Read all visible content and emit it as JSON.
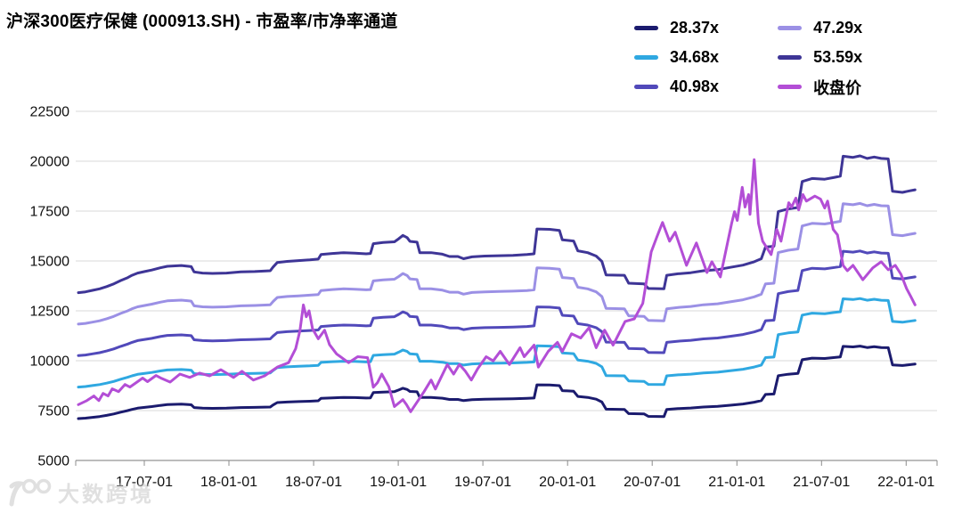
{
  "title": "沪深300医疗保健 (000913.SH) - 市盈率/市净率通道",
  "watermark": "大数跨境",
  "watermark_logo": "100-badge",
  "colors": {
    "background": "#ffffff",
    "grid": "#d9d9d9",
    "axis": "#a6a6a6",
    "tick": "#8c8c8c",
    "text": "#000000"
  },
  "legend": {
    "columns": [
      [
        "28.37x",
        "34.68x",
        "40.98x"
      ],
      [
        "47.29x",
        "53.59x",
        "收盘价"
      ]
    ]
  },
  "chart_data": {
    "type": "line",
    "title": "沪深300医疗保健 (000913.SH) - 市盈率/市净率通道",
    "xlabel": "",
    "ylabel": "",
    "grid": "horizontal",
    "legend_position": "top-right",
    "ylim": [
      5000,
      22500
    ],
    "y_ticks": [
      5000,
      7500,
      10000,
      12500,
      15000,
      17500,
      20000,
      22500
    ],
    "x_ticks": {
      "labels": [
        "17-07-01",
        "18-01-01",
        "18-07-01",
        "19-01-01",
        "19-07-01",
        "20-01-01",
        "20-07-01",
        "21-01-01",
        "21-07-01",
        "22-01-01"
      ],
      "t": [
        4.67,
        10.67,
        16.67,
        22.67,
        28.67,
        34.67,
        40.67,
        46.67,
        52.67,
        58.67
      ]
    },
    "time_axis_note": "t is months elapsed since series start (early 2017-02); ticks every 6 months",
    "base_multiple": 28.37,
    "series": [
      {
        "name": "28.37x",
        "multiple": 28.37,
        "color": "#1b1b6e",
        "source": "base"
      },
      {
        "name": "34.68x",
        "multiple": 34.68,
        "color": "#2fa8e1",
        "source": "base"
      },
      {
        "name": "40.98x",
        "multiple": 40.98,
        "color": "#5149ba",
        "source": "base"
      },
      {
        "name": "47.29x",
        "multiple": 47.29,
        "color": "#9b90e5",
        "source": "base"
      },
      {
        "name": "53.59x",
        "multiple": 53.59,
        "color": "#3e3596",
        "source": "base"
      },
      {
        "name": "收盘价",
        "color": "#b34ed6",
        "source": "close"
      }
    ],
    "base_points": [
      [
        0,
        7100
      ],
      [
        0.5,
        7120
      ],
      [
        1,
        7160
      ],
      [
        1.5,
        7200
      ],
      [
        2,
        7260
      ],
      [
        2.5,
        7330
      ],
      [
        3,
        7420
      ],
      [
        3.5,
        7500
      ],
      [
        3.8,
        7560
      ],
      [
        4.2,
        7620
      ],
      [
        4.7,
        7660
      ],
      [
        5.2,
        7700
      ],
      [
        5.8,
        7760
      ],
      [
        6.3,
        7800
      ],
      [
        7.3,
        7820
      ],
      [
        7.8,
        7800
      ],
      [
        8.0,
        7790
      ],
      [
        8.2,
        7650
      ],
      [
        8.8,
        7620
      ],
      [
        9.5,
        7610
      ],
      [
        10.5,
        7620
      ],
      [
        11.5,
        7650
      ],
      [
        12.5,
        7660
      ],
      [
        13.6,
        7680
      ],
      [
        13.8,
        7780
      ],
      [
        14.1,
        7900
      ],
      [
        14.8,
        7930
      ],
      [
        15.6,
        7950
      ],
      [
        16.4,
        7970
      ],
      [
        17.0,
        7990
      ],
      [
        17.2,
        8110
      ],
      [
        18.0,
        8140
      ],
      [
        18.8,
        8160
      ],
      [
        19.6,
        8150
      ],
      [
        20.4,
        8130
      ],
      [
        20.7,
        8140
      ],
      [
        20.9,
        8400
      ],
      [
        21.6,
        8430
      ],
      [
        22.4,
        8450
      ],
      [
        22.7,
        8530
      ],
      [
        23.0,
        8620
      ],
      [
        23.3,
        8560
      ],
      [
        23.5,
        8460
      ],
      [
        24.0,
        8440
      ],
      [
        24.2,
        8160
      ],
      [
        25.0,
        8160
      ],
      [
        25.8,
        8120
      ],
      [
        26.3,
        8060
      ],
      [
        26.9,
        8060
      ],
      [
        27.3,
        8000
      ],
      [
        27.9,
        8050
      ],
      [
        28.8,
        8070
      ],
      [
        29.8,
        8080
      ],
      [
        30.8,
        8090
      ],
      [
        31.8,
        8110
      ],
      [
        32.3,
        8130
      ],
      [
        32.5,
        8790
      ],
      [
        33.4,
        8780
      ],
      [
        34.1,
        8750
      ],
      [
        34.3,
        8500
      ],
      [
        35.1,
        8470
      ],
      [
        35.4,
        8210
      ],
      [
        36.1,
        8160
      ],
      [
        36.7,
        8070
      ],
      [
        37.1,
        7930
      ],
      [
        37.4,
        7570
      ],
      [
        38.7,
        7560
      ],
      [
        39.0,
        7350
      ],
      [
        40.1,
        7330
      ],
      [
        40.4,
        7210
      ],
      [
        41.5,
        7200
      ],
      [
        41.7,
        7560
      ],
      [
        42.5,
        7600
      ],
      [
        43.4,
        7630
      ],
      [
        44.3,
        7680
      ],
      [
        45.3,
        7710
      ],
      [
        46.2,
        7770
      ],
      [
        47.1,
        7830
      ],
      [
        47.9,
        7920
      ],
      [
        48.4,
        8000
      ],
      [
        48.7,
        8310
      ],
      [
        49.3,
        8330
      ],
      [
        49.6,
        9250
      ],
      [
        50.3,
        9320
      ],
      [
        51.0,
        9360
      ],
      [
        51.3,
        10050
      ],
      [
        52.0,
        10130
      ],
      [
        52.9,
        10110
      ],
      [
        53.6,
        10160
      ],
      [
        54.0,
        10190
      ],
      [
        54.2,
        10720
      ],
      [
        54.9,
        10690
      ],
      [
        55.4,
        10730
      ],
      [
        55.9,
        10660
      ],
      [
        56.4,
        10700
      ],
      [
        56.9,
        10660
      ],
      [
        57.4,
        10650
      ],
      [
        57.7,
        9790
      ],
      [
        58.4,
        9760
      ],
      [
        58.9,
        9800
      ],
      [
        59.3,
        9830
      ]
    ],
    "close_points": [
      [
        0,
        7800
      ],
      [
        0.6,
        8000
      ],
      [
        1.1,
        8230
      ],
      [
        1.45,
        8000
      ],
      [
        1.75,
        8360
      ],
      [
        2.1,
        8230
      ],
      [
        2.4,
        8590
      ],
      [
        2.85,
        8450
      ],
      [
        3.3,
        8810
      ],
      [
        3.65,
        8680
      ],
      [
        4.2,
        8950
      ],
      [
        4.55,
        9130
      ],
      [
        4.9,
        8950
      ],
      [
        5.5,
        9260
      ],
      [
        5.9,
        9110
      ],
      [
        6.5,
        8930
      ],
      [
        7.2,
        9330
      ],
      [
        7.9,
        9160
      ],
      [
        8.6,
        9380
      ],
      [
        9.3,
        9240
      ],
      [
        10.1,
        9550
      ],
      [
        11.0,
        9160
      ],
      [
        11.6,
        9470
      ],
      [
        12.4,
        9030
      ],
      [
        13.2,
        9240
      ],
      [
        14.1,
        9680
      ],
      [
        14.9,
        9900
      ],
      [
        15.4,
        10600
      ],
      [
        15.7,
        11500
      ],
      [
        15.95,
        12800
      ],
      [
        16.15,
        12200
      ],
      [
        16.35,
        12500
      ],
      [
        16.6,
        11600
      ],
      [
        17.0,
        11100
      ],
      [
        17.45,
        11530
      ],
      [
        17.8,
        10800
      ],
      [
        18.3,
        10340
      ],
      [
        19.15,
        9900
      ],
      [
        19.8,
        10200
      ],
      [
        20.5,
        10150
      ],
      [
        20.9,
        8670
      ],
      [
        21.2,
        8900
      ],
      [
        21.5,
        9330
      ],
      [
        22.0,
        8700
      ],
      [
        22.4,
        7700
      ],
      [
        23.0,
        8050
      ],
      [
        23.25,
        7800
      ],
      [
        23.55,
        7440
      ],
      [
        24.5,
        8450
      ],
      [
        25.0,
        9030
      ],
      [
        25.3,
        8580
      ],
      [
        26.0,
        9590
      ],
      [
        26.15,
        9810
      ],
      [
        26.6,
        9330
      ],
      [
        27.0,
        9810
      ],
      [
        27.4,
        9500
      ],
      [
        27.85,
        9030
      ],
      [
        28.3,
        9600
      ],
      [
        28.9,
        10200
      ],
      [
        29.4,
        9990
      ],
      [
        29.9,
        10470
      ],
      [
        30.55,
        9810
      ],
      [
        31.3,
        10650
      ],
      [
        31.6,
        10200
      ],
      [
        32.3,
        10780
      ],
      [
        32.6,
        9680
      ],
      [
        33.3,
        10470
      ],
      [
        33.95,
        10920
      ],
      [
        34.3,
        10470
      ],
      [
        34.95,
        11350
      ],
      [
        35.6,
        11140
      ],
      [
        36.2,
        11660
      ],
      [
        36.7,
        10650
      ],
      [
        37.3,
        11530
      ],
      [
        37.9,
        10780
      ],
      [
        38.75,
        11970
      ],
      [
        39.4,
        12100
      ],
      [
        40.0,
        12870
      ],
      [
        40.6,
        15450
      ],
      [
        41.0,
        16200
      ],
      [
        41.4,
        16930
      ],
      [
        41.9,
        15990
      ],
      [
        42.3,
        16440
      ],
      [
        43.1,
        14780
      ],
      [
        43.8,
        15900
      ],
      [
        44.55,
        14420
      ],
      [
        44.9,
        14960
      ],
      [
        45.5,
        14200
      ],
      [
        46.3,
        16890
      ],
      [
        46.5,
        17475
      ],
      [
        46.7,
        17030
      ],
      [
        47.05,
        18690
      ],
      [
        47.25,
        17700
      ],
      [
        47.5,
        18330
      ],
      [
        47.6,
        17340
      ],
      [
        47.9,
        20080
      ],
      [
        48.2,
        16890
      ],
      [
        48.5,
        15990
      ],
      [
        49.1,
        15320
      ],
      [
        49.5,
        16580
      ],
      [
        49.8,
        15990
      ],
      [
        50.35,
        17920
      ],
      [
        50.55,
        17700
      ],
      [
        50.85,
        18150
      ],
      [
        51.05,
        17560
      ],
      [
        51.35,
        18330
      ],
      [
        51.6,
        18000
      ],
      [
        52.2,
        18250
      ],
      [
        52.6,
        18100
      ],
      [
        52.9,
        17650
      ],
      [
        53.1,
        18000
      ],
      [
        53.5,
        16580
      ],
      [
        53.8,
        16310
      ],
      [
        54.2,
        14780
      ],
      [
        54.5,
        14510
      ],
      [
        54.9,
        14780
      ],
      [
        55.6,
        14060
      ],
      [
        56.3,
        14650
      ],
      [
        56.9,
        14960
      ],
      [
        57.4,
        14560
      ],
      [
        57.9,
        14780
      ],
      [
        58.3,
        14330
      ],
      [
        58.7,
        13610
      ],
      [
        59.0,
        13210
      ],
      [
        59.3,
        12800
      ]
    ]
  }
}
